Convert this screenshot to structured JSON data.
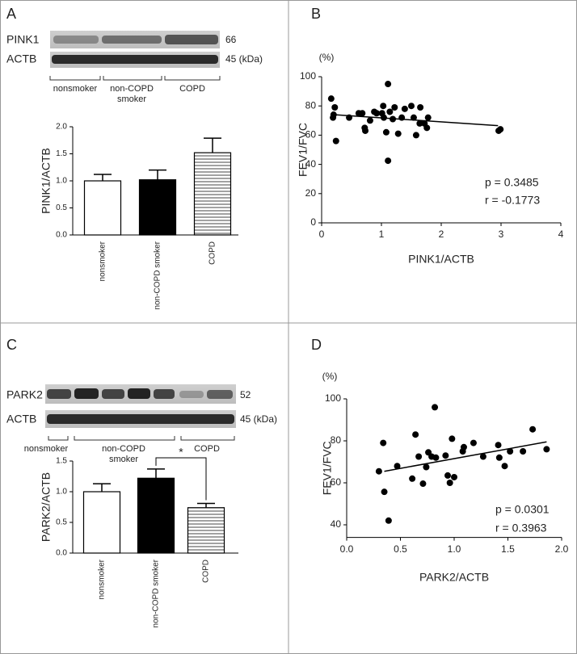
{
  "panels": [
    {
      "label": "A",
      "blot": {
        "rows": [
          {
            "name": "PINK1",
            "size": "66"
          },
          {
            "name": "ACTB",
            "size": "45 (kDa)"
          }
        ],
        "groups": [
          "nonsmoker",
          "non-COPD smoker",
          "COPD"
        ]
      }
    },
    {
      "label": "B"
    },
    {
      "label": "C",
      "blot": {
        "rows": [
          {
            "name": "PARK2",
            "size": "52"
          },
          {
            "name": "ACTB",
            "size": "45 (kDa)"
          }
        ],
        "groups": [
          "nonsmoker",
          "non-COPD smoker",
          "COPD"
        ]
      }
    },
    {
      "label": "D"
    }
  ],
  "chart_data": [
    {
      "type": "bar",
      "y_label": "PINK1/ACTB",
      "categories": [
        "nonsmoker",
        "non-COPD smoker",
        "COPD"
      ],
      "values": [
        1.0,
        1.02,
        1.52
      ],
      "errors": [
        0.12,
        0.18,
        0.27
      ],
      "fills": [
        "#ffffff",
        "#000000",
        "horizontal-lines"
      ],
      "ylim": [
        0,
        2.0
      ],
      "yticks": [
        {
          "value": 0,
          "label": "0.0"
        },
        0.5,
        {
          "value": 1,
          "label": "1.0"
        },
        1.5,
        {
          "value": 2,
          "label": "2.0"
        }
      ]
    },
    {
      "type": "scatter",
      "x_label": "PINK1/ACTB",
      "y_label": "FEV1/FVC",
      "y_unit": "(%)",
      "x": [
        0.16,
        0.19,
        0.2,
        0.22,
        0.24,
        0.46,
        0.62,
        0.68,
        0.72,
        0.73,
        0.81,
        0.88,
        0.92,
        1.01,
        1.03,
        1.04,
        1.08,
        1.11,
        1.11,
        1.14,
        1.19,
        1.22,
        1.28,
        1.34,
        1.39,
        1.5,
        1.54,
        1.58,
        1.64,
        1.65,
        1.72,
        1.76,
        1.78,
        2.96,
        2.99
      ],
      "y": [
        85,
        72,
        74,
        79,
        56,
        72,
        75,
        75,
        65,
        63,
        70,
        76,
        75,
        75,
        80,
        72,
        62,
        95,
        42.5,
        76,
        71,
        79,
        61,
        72,
        78,
        80,
        72,
        60,
        68,
        79,
        68,
        65,
        72,
        63,
        64
      ],
      "trendline": {
        "x": [
          0.2,
          2.95
        ],
        "y": [
          74,
          66.5
        ]
      },
      "annotations": [
        "p = 0.3485",
        "r = -0.1773"
      ],
      "xlim": [
        0,
        4
      ],
      "xticks": [
        0,
        1,
        2,
        3,
        4
      ],
      "ylim": [
        0,
        100
      ],
      "yticks": [
        0,
        20,
        40,
        60,
        80,
        100
      ]
    },
    {
      "type": "bar",
      "y_label": "PARK2/ACTB",
      "categories": [
        "nonsmoker",
        "non-COPD smoker",
        "COPD"
      ],
      "values": [
        1.0,
        1.22,
        0.74
      ],
      "errors": [
        0.13,
        0.15,
        0.07
      ],
      "fills": [
        "#ffffff",
        "#000000",
        "horizontal-lines"
      ],
      "annotations": [
        "*"
      ],
      "ylim": [
        0,
        1.5
      ],
      "yticks": [
        {
          "value": 0,
          "label": "0.0"
        },
        0.5,
        {
          "value": 1,
          "label": "1.0"
        },
        1.5
      ]
    },
    {
      "type": "scatter",
      "x_label": "PARK2/ACTB",
      "y_label": "FEV1/FVC",
      "y_unit": "(%)",
      "x": [
        0.3,
        0.34,
        0.35,
        0.39,
        0.47,
        0.61,
        0.64,
        0.67,
        0.71,
        0.74,
        0.76,
        0.79,
        0.82,
        0.83,
        0.92,
        0.94,
        0.96,
        0.98,
        1.0,
        1.08,
        1.09,
        1.18,
        1.27,
        1.41,
        1.42,
        1.47,
        1.52,
        1.64,
        1.73,
        1.86
      ],
      "y": [
        65.5,
        79,
        55.7,
        42,
        68,
        62,
        83,
        72.5,
        59.6,
        67.5,
        74.5,
        72.5,
        96,
        72,
        73,
        63.5,
        60,
        81,
        62.7,
        75,
        77,
        79,
        72.5,
        78,
        72,
        68,
        75,
        75,
        85.5,
        76
      ],
      "trendline": {
        "x": [
          0.35,
          1.86
        ],
        "y": [
          65.5,
          79.5
        ]
      },
      "annotations": [
        "p = 0.0301",
        "r = 0.3963"
      ],
      "xlim": [
        0,
        2.0
      ],
      "xticks": [
        {
          "value": 0,
          "label": "0.0"
        },
        0.5,
        {
          "value": 1,
          "label": "1.0"
        },
        1.5,
        {
          "value": 2,
          "label": "2.0"
        }
      ],
      "ylim": [
        34,
        100
      ],
      "yticks": [
        40,
        60,
        80,
        100
      ]
    }
  ]
}
